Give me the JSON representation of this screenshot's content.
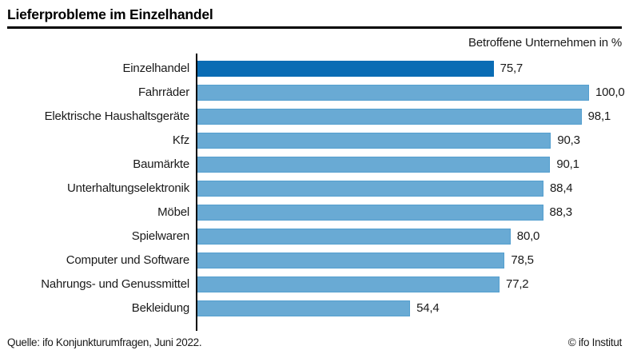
{
  "header": {
    "title": "Lieferprobleme im Einzelhandel"
  },
  "subtitle": "Betroffene Unternehmen in %",
  "chart_data": {
    "type": "bar",
    "orientation": "horizontal",
    "title": "Lieferprobleme im Einzelhandel",
    "axis_label": "Betroffene Unternehmen in %",
    "xlim": [
      0,
      100
    ],
    "grid": false,
    "legend": false,
    "categories": [
      "Einzelhandel",
      "Fahrräder",
      "Elektrische Haushaltsgeräte",
      "Kfz",
      "Baumärkte",
      "Unterhaltungselektronik",
      "Möbel",
      "Spielwaren",
      "Computer und Software",
      "Nahrungs- und Genussmittel",
      "Bekleidung"
    ],
    "values": [
      75.7,
      100.0,
      98.1,
      90.3,
      90.1,
      88.4,
      88.3,
      80.0,
      78.5,
      77.2,
      54.4
    ],
    "value_labels": [
      "75,7",
      "100,0",
      "98,1",
      "90,3",
      "90,1",
      "88,4",
      "88,3",
      "80,0",
      "78,5",
      "77,2",
      "54,4"
    ],
    "highlight_index": 0,
    "colors": {
      "highlight_bar": "#0a6cb4",
      "default_bar": "#69aad4",
      "bar_border": "#549fcf",
      "axis": "#000000"
    }
  },
  "footer": {
    "source": "Quelle: ifo Konjunkturumfragen, Juni 2022.",
    "copyright": "© ifo Institut"
  }
}
